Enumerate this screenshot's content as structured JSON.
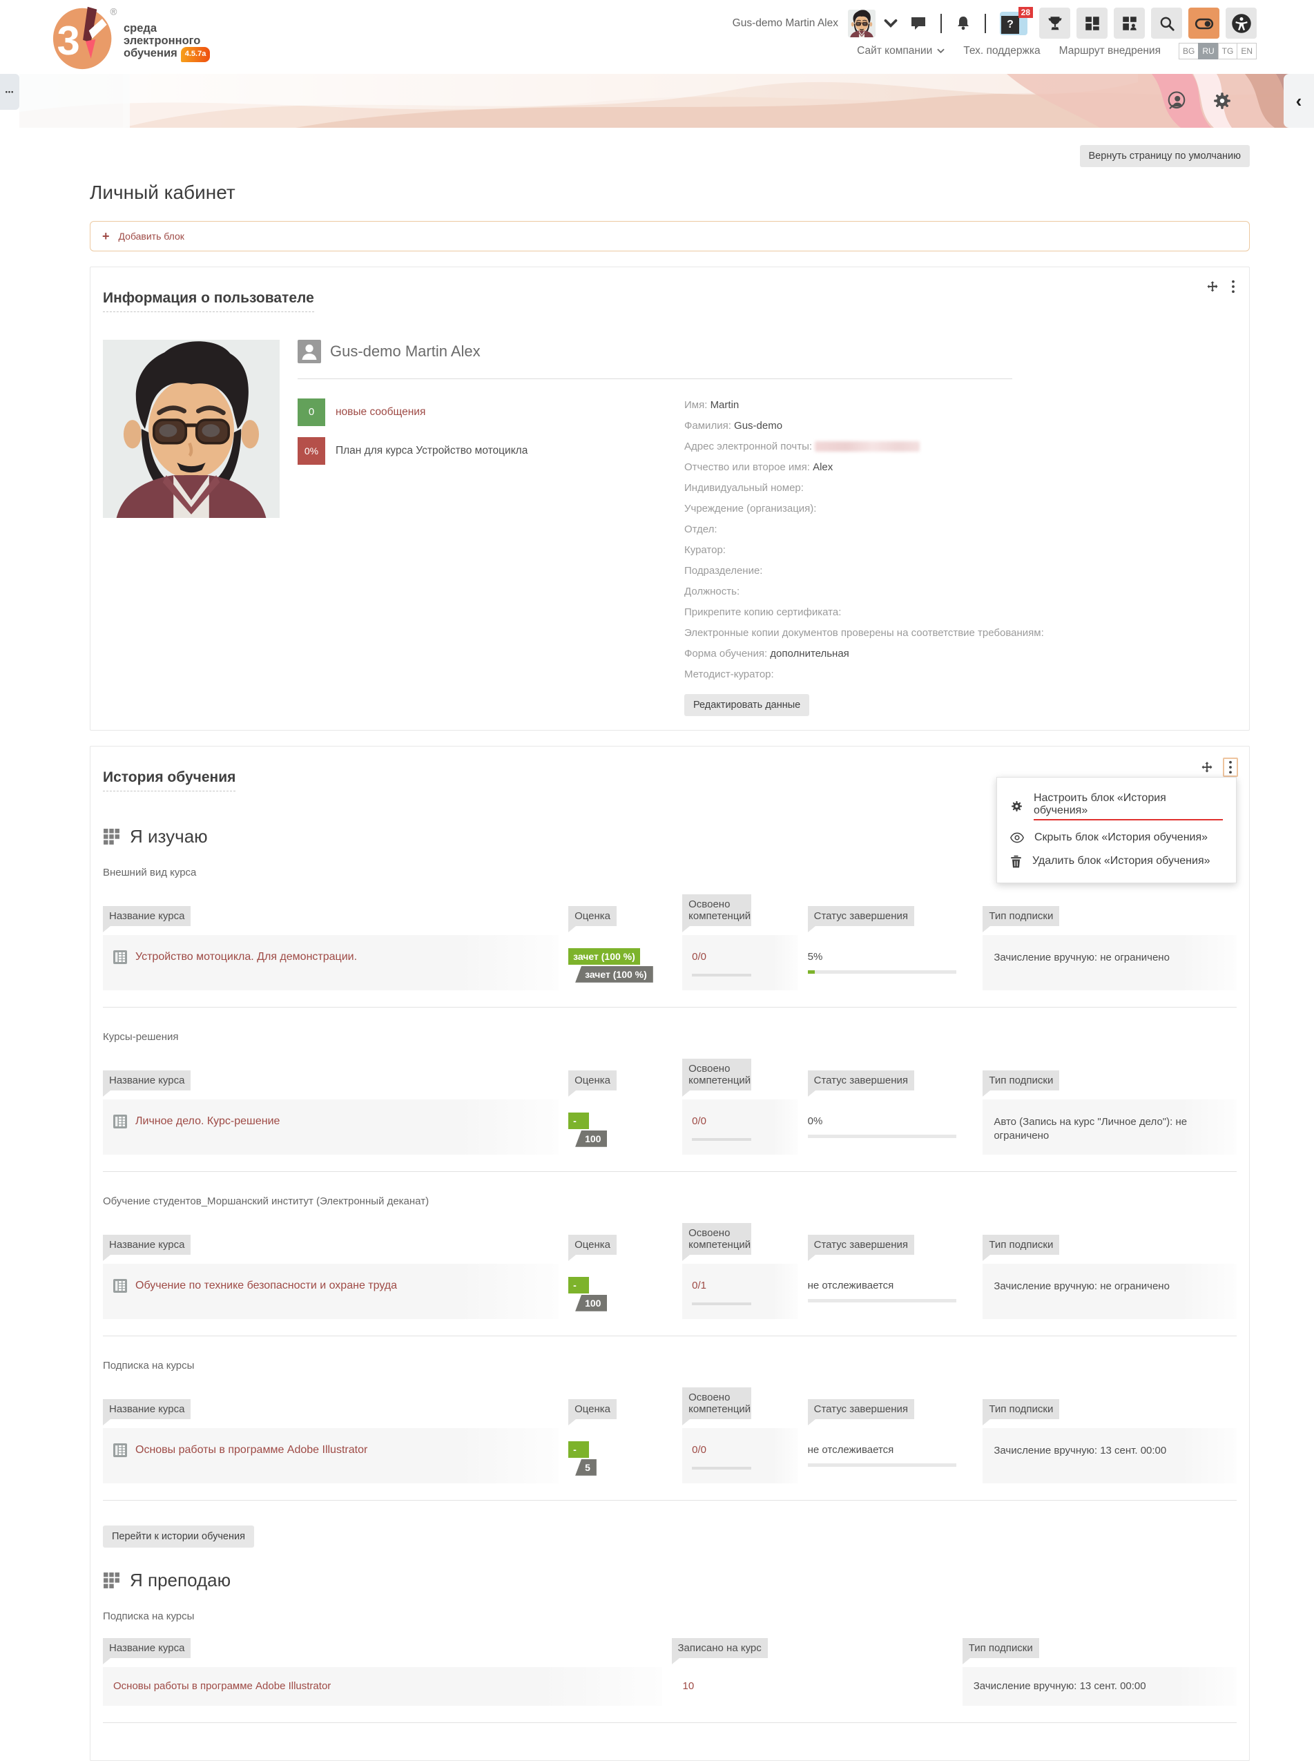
{
  "icons": {
    "dots_handle": "•••",
    "collapse": "‹",
    "plus": "+",
    "help_q": "?",
    "registered_mark": "®"
  },
  "header": {
    "logo": {
      "line1": "среда",
      "line2": "электронного",
      "line3": "обучения",
      "version": "4.5.7a"
    },
    "user_name": "Gus-demo Martin Alex",
    "help_badge": "28",
    "links": {
      "company": "Сайт компании",
      "support": "Тех. поддержка",
      "route": "Маршрут внедрения"
    },
    "languages": [
      "BG",
      "RU",
      "TG",
      "EN"
    ],
    "active_language": "RU"
  },
  "page": {
    "reset_button": "Вернуть страницу по умолчанию",
    "title": "Личный кабинет",
    "add_block": "Добавить блок"
  },
  "user_block": {
    "title": "Информация о пользователе",
    "display_name": "Gus-demo Martin Alex",
    "messages_badge": "0",
    "messages_link": "новые сообщения",
    "plan_badge": "0%",
    "plan_text": "План для курса Устройство мотоцикла",
    "edit_button": "Редактировать данные",
    "details": [
      {
        "label": "Имя:",
        "value": "Martin"
      },
      {
        "label": "Фамилия:",
        "value": "Gus-demo"
      },
      {
        "label": "Адрес электронной почты:",
        "value": ""
      },
      {
        "label": "Отчество или второе имя:",
        "value": "Alex"
      },
      {
        "label": "Индивидуальный номер:",
        "value": ""
      },
      {
        "label": "Учреждение (организация):",
        "value": ""
      },
      {
        "label": "Отдел:",
        "value": ""
      },
      {
        "label": "Куратор:",
        "value": ""
      },
      {
        "label": "Подразделение:",
        "value": ""
      },
      {
        "label": "Должность:",
        "value": ""
      },
      {
        "label": "Прикрепите копию сертификата:",
        "value": ""
      },
      {
        "label": "Электронные копии документов проверены на соответствие требованиям:",
        "value": ""
      },
      {
        "label": "Форма обучения:",
        "value": "дополнительная"
      },
      {
        "label": "Методист-куратор:",
        "value": ""
      }
    ]
  },
  "history_block": {
    "title": "История обучения",
    "menu": [
      {
        "label": "Настроить блок «История обучения»"
      },
      {
        "label": "Скрыть блок «История обучения»"
      },
      {
        "label": "Удалить блок «История обучения»"
      }
    ],
    "table_headers": {
      "course": "Название курса",
      "grade": "Оценка",
      "competencies": "Освоено компетенций",
      "status": "Статус завершения",
      "subscription": "Тип подписки",
      "enrolled": "Записано на курс"
    },
    "i_study": {
      "title": "Я изучаю",
      "go_button": "Перейти к истории обучения",
      "groups": [
        {
          "title": "Внешний вид курса",
          "course": "Устройство мотоцикла. Для демонстрации.",
          "grade_top": "зачет (100 %)",
          "grade_bottom": "зачет (100 %)",
          "competencies": "0/0",
          "status": "5%",
          "status_pct": 5,
          "subscription": "Зачисление вручную: не ограничено"
        },
        {
          "title": "Курсы-решения",
          "course": "Личное дело. Курс-решение",
          "grade_top": "-",
          "grade_bottom": "100",
          "competencies": "0/0",
          "status": "0%",
          "status_pct": 0,
          "subscription": "Авто (Запись на курс \"Личное дело\"): не ограничено"
        },
        {
          "title": "Обучение студентов_Моршанский институт (Электронный деканат)",
          "course": "Обучение по технике безопасности и охране труда",
          "grade_top": "-",
          "grade_bottom": "100",
          "competencies": "0/1",
          "status": "не отслеживается",
          "status_pct": 0,
          "subscription": "Зачисление вручную: не ограничено"
        },
        {
          "title": "Подписка на курсы",
          "course": "Основы работы в программе Adobe Illustrator",
          "grade_top": "-",
          "grade_bottom": "5",
          "competencies": "0/0",
          "status": "не отслеживается",
          "status_pct": 0,
          "subscription": "Зачисление вручную: 13 сент. 00:00"
        }
      ]
    },
    "i_teach": {
      "title": "Я преподаю",
      "group_title": "Подписка на курсы",
      "course": "Основы работы в программе Adobe Illustrator",
      "enrolled": "10",
      "subscription": "Зачисление вручную: 13 сент. 00:00"
    }
  },
  "colors": {
    "accent_orange": "#e9975f",
    "link_maroon": "#9e4a45",
    "green": "#7db32b",
    "badge_green": "#63a15a",
    "badge_red": "#b5504a",
    "grade_gray": "#757570"
  }
}
